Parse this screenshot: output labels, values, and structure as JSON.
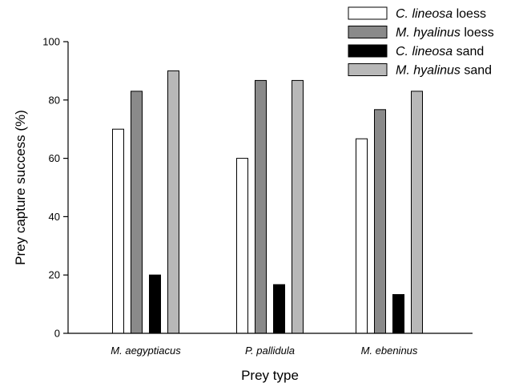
{
  "chart_data": {
    "type": "bar",
    "categories": [
      "M. aegyptiacus",
      "P. pallidula",
      "M. ebeninus"
    ],
    "series": [
      {
        "name_italic": "C. lineosa",
        "name_rest": " loess",
        "color": "#ffffff",
        "values": [
          70,
          60,
          66.7
        ]
      },
      {
        "name_italic": "M. hyalinus",
        "name_rest": " loess",
        "color": "#8a8a8a",
        "values": [
          83,
          86.7,
          76.7
        ]
      },
      {
        "name_italic": "C. lineosa",
        "name_rest": " sand",
        "color": "#000000",
        "values": [
          20,
          16.7,
          13.3
        ]
      },
      {
        "name_italic": "M. hyalinus",
        "name_rest": " sand",
        "color": "#b8b8b8",
        "values": [
          90,
          86.7,
          83
        ]
      }
    ],
    "xlabel": "Prey type",
    "ylabel": "Prey capture success (%)",
    "ylim": [
      0,
      100
    ],
    "yticks": [
      0,
      20,
      40,
      60,
      80,
      100
    ],
    "grid": false,
    "legend_position": "top-right"
  }
}
